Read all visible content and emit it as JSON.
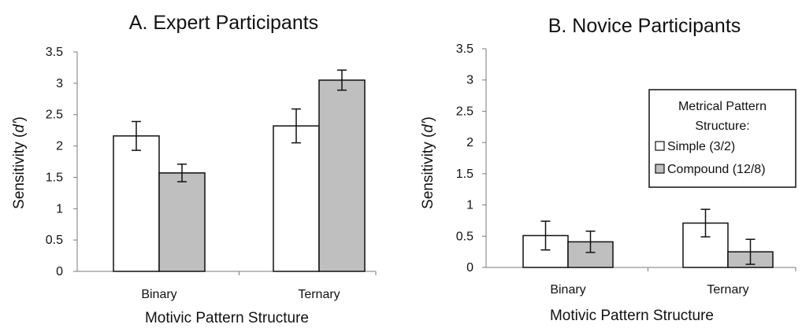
{
  "colors": {
    "simple": "#ffffff",
    "compound": "#bfbfbf",
    "stroke": "#111111"
  },
  "legend": {
    "title_line1": "Metrical Pattern",
    "title_line2": "Structure:",
    "simple_label": "Simple (3/2)",
    "compound_label": "Compound (12/8)"
  },
  "chart_data": [
    {
      "type": "bar",
      "title": "A. Expert Participants",
      "xlabel": "Motivic Pattern Structure",
      "ylabel": "Sensitivity (d')",
      "ylabel_prefix": "Sensitivity (",
      "ylabel_italic": "d'",
      "ylabel_suffix": ")",
      "ylim": [
        0,
        3.5
      ],
      "yticks": [
        "0",
        "0.5",
        "1",
        "1.5",
        "2",
        "2.5",
        "3",
        "3.5"
      ],
      "categories": [
        "Binary",
        "Ternary"
      ],
      "series": [
        {
          "name": "Simple (3/2)",
          "values": [
            2.16,
            2.32
          ],
          "errors": [
            0.23,
            0.27
          ]
        },
        {
          "name": "Compound (12/8)",
          "values": [
            1.57,
            3.05
          ],
          "errors": [
            0.14,
            0.16
          ]
        }
      ],
      "legend": "none"
    },
    {
      "type": "bar",
      "title": "B. Novice Participants",
      "xlabel": "Motivic Pattern Structure",
      "ylabel": "Sensitivity (d')",
      "ylabel_prefix": "Sensitivity (",
      "ylabel_italic": "d'",
      "ylabel_suffix": ")",
      "ylim": [
        0,
        3.5
      ],
      "yticks": [
        "0",
        "0.5",
        "1",
        "1.5",
        "2",
        "2.5",
        "3",
        "3.5"
      ],
      "categories": [
        "Binary",
        "Ternary"
      ],
      "series": [
        {
          "name": "Simple (3/2)",
          "values": [
            0.51,
            0.71
          ],
          "errors": [
            0.23,
            0.22
          ]
        },
        {
          "name": "Compound (12/8)",
          "values": [
            0.41,
            0.25
          ],
          "errors": [
            0.17,
            0.2
          ]
        }
      ],
      "legend": "right"
    }
  ]
}
